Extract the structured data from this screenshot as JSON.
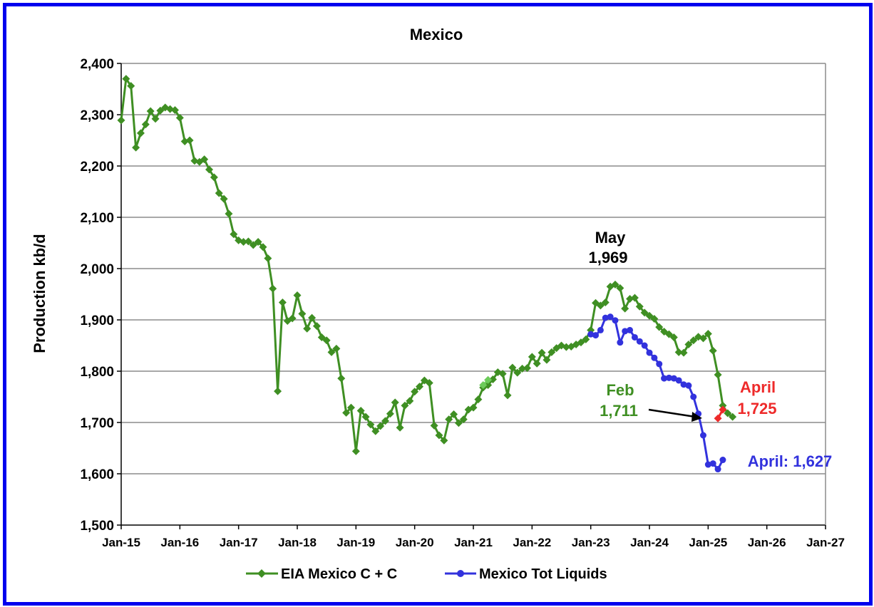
{
  "chart_data": {
    "type": "line",
    "title": "Mexico",
    "ylabel": "Production kb/d",
    "xlabel": "",
    "ylim": [
      1500,
      2400
    ],
    "yticks": [
      1500,
      1600,
      1700,
      1800,
      1900,
      2000,
      2100,
      2200,
      2300,
      2400
    ],
    "ytick_labels": [
      "1,500",
      "1,600",
      "1,700",
      "1,800",
      "1,900",
      "2,000",
      "2,100",
      "2,200",
      "2,300",
      "2,400"
    ],
    "xlim": [
      2015.0,
      2027.0
    ],
    "xticks": [
      2015,
      2016,
      2017,
      2018,
      2019,
      2020,
      2021,
      2022,
      2023,
      2024,
      2025,
      2026,
      2027
    ],
    "xtick_labels": [
      "Jan-15",
      "Jan-16",
      "Jan-17",
      "Jan-18",
      "Jan-19",
      "Jan-20",
      "Jan-21",
      "Jan-22",
      "Jan-23",
      "Jan-24",
      "Jan-25",
      "Jan-26",
      "Jan-27"
    ],
    "grid": "horizontal",
    "legend": "bottom",
    "colors": {
      "green": "#3f8f23",
      "green_light": "#6ccb5a",
      "blue": "#3232dd",
      "red": "#ee2a2a",
      "grid": "#8c8c8c",
      "frame": "#0000ee"
    },
    "series": [
      {
        "name": "EIA Mexico C + C",
        "marker": "diamond",
        "color": "#3f8f23",
        "start": "2015-01",
        "values": [
          2289,
          2370,
          2356,
          2236,
          2264,
          2281,
          2307,
          2292,
          2308,
          2314,
          2311,
          2309,
          2294,
          2248,
          2250,
          2210,
          2208,
          2213,
          2193,
          2178,
          2147,
          2136,
          2107,
          2067,
          2055,
          2052,
          2053,
          2046,
          2052,
          2042,
          2020,
          1961,
          1761,
          1934,
          1898,
          1903,
          1948,
          1912,
          1883,
          1904,
          1888,
          1866,
          1860,
          1837,
          1844,
          1786,
          1719,
          1729,
          1644,
          1723,
          1711,
          1696,
          1683,
          1693,
          1703,
          1717,
          1739,
          1690,
          1733,
          1742,
          1760,
          1770,
          1782,
          1777,
          1694,
          1675,
          1665,
          1706,
          1716,
          1699,
          1706,
          1725,
          1729,
          1745,
          1768,
          1773,
          1784,
          1798,
          1795,
          1753,
          1807,
          1797,
          1805,
          1806,
          1828,
          1815,
          1836,
          1822,
          1837,
          1845,
          1850,
          1847,
          1848,
          1852,
          1856,
          1862,
          1880,
          1933,
          1928,
          1934,
          1965,
          1969,
          1962,
          1922,
          1941,
          1943,
          1926,
          1914,
          1908,
          1902,
          1886,
          1877,
          1872,
          1866,
          1837,
          1836,
          1852,
          1860,
          1867,
          1864,
          1873,
          1840,
          1793,
          1733,
          1718,
          1711
        ],
        "highlight_points": [
          {
            "x": "2021-03",
            "y": 1773
          },
          {
            "x": "2021-04",
            "y": 1783
          }
        ]
      },
      {
        "name": "Mexico Tot Liquids",
        "marker": "circle",
        "color": "#3232dd",
        "start": "2023-01",
        "values": [
          1872,
          1870,
          1880,
          1904,
          1906,
          1899,
          1856,
          1878,
          1880,
          1866,
          1858,
          1850,
          1836,
          1826,
          1814,
          1786,
          1787,
          1786,
          1782,
          1774,
          1772,
          1750,
          1717,
          1675,
          1618,
          1620,
          1609,
          1627
        ]
      },
      {
        "name": "",
        "marker": "diamond",
        "color": "#ee2a2a",
        "start": "2025-03",
        "values": [
          1708,
          1725
        ]
      }
    ],
    "annotations": [
      {
        "text": "May",
        "color": "#000000"
      },
      {
        "text": "1,969",
        "color": "#000000"
      },
      {
        "text": "Feb",
        "color": "#3f8f23"
      },
      {
        "text": "1,711",
        "color": "#3f8f23"
      },
      {
        "text": "April",
        "color": "#ee2a2a"
      },
      {
        "text": "1,725",
        "color": "#ee2a2a"
      },
      {
        "text": "April: 1,627",
        "color": "#3232dd"
      }
    ]
  }
}
